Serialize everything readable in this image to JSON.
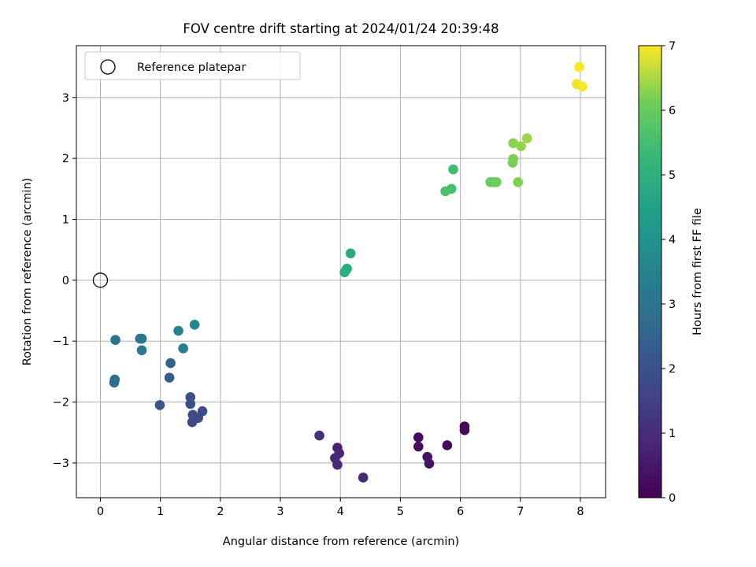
{
  "chart_data": {
    "type": "scatter",
    "title": "FOV centre drift starting at 2024/01/24 20:39:48",
    "xlabel": "Angular distance from reference (arcmin)",
    "ylabel": "Rotation from reference (arcmin)",
    "xlim": [
      -0.4,
      8.42
    ],
    "ylim": [
      -3.57,
      3.85
    ],
    "xticks": [
      0,
      1,
      2,
      3,
      4,
      5,
      6,
      7,
      8
    ],
    "yticks": [
      -3,
      -2,
      -1,
      0,
      1,
      2,
      3
    ],
    "grid": true,
    "colorbar": {
      "label": "Hours from first FF file",
      "range": [
        0,
        7
      ],
      "ticks": [
        0,
        1,
        2,
        3,
        4,
        5,
        6,
        7
      ],
      "colormap": "viridis"
    },
    "legend": {
      "position": "top-left",
      "entries": [
        {
          "label": "Reference platepar",
          "marker": "open-circle"
        }
      ]
    },
    "reference_point": {
      "x": 0,
      "y": 0
    },
    "points": [
      {
        "x": 6.07,
        "y": -2.4,
        "hours": 0.1
      },
      {
        "x": 6.07,
        "y": -2.46,
        "hours": 0.15
      },
      {
        "x": 5.78,
        "y": -2.71,
        "hours": 0.2
      },
      {
        "x": 5.3,
        "y": -2.58,
        "hours": 0.25
      },
      {
        "x": 5.3,
        "y": -2.73,
        "hours": 0.3
      },
      {
        "x": 5.45,
        "y": -2.9,
        "hours": 0.35
      },
      {
        "x": 5.48,
        "y": -3.01,
        "hours": 0.4
      },
      {
        "x": 3.95,
        "y": -2.75,
        "hours": 0.75
      },
      {
        "x": 3.98,
        "y": -2.84,
        "hours": 0.8
      },
      {
        "x": 3.91,
        "y": -2.92,
        "hours": 0.85
      },
      {
        "x": 3.95,
        "y": -3.03,
        "hours": 0.9
      },
      {
        "x": 4.38,
        "y": -3.24,
        "hours": 0.95
      },
      {
        "x": 3.65,
        "y": -2.55,
        "hours": 1.0
      },
      {
        "x": 1.53,
        "y": -2.33,
        "hours": 1.7
      },
      {
        "x": 1.63,
        "y": -2.26,
        "hours": 1.75
      },
      {
        "x": 1.54,
        "y": -2.21,
        "hours": 1.8
      },
      {
        "x": 1.7,
        "y": -2.15,
        "hours": 1.85
      },
      {
        "x": 1.5,
        "y": -2.03,
        "hours": 1.9
      },
      {
        "x": 1.5,
        "y": -1.92,
        "hours": 1.95
      },
      {
        "x": 0.99,
        "y": -2.05,
        "hours": 2.1
      },
      {
        "x": 1.15,
        "y": -1.6,
        "hours": 2.3
      },
      {
        "x": 1.17,
        "y": -1.36,
        "hours": 2.5
      },
      {
        "x": 0.23,
        "y": -1.68,
        "hours": 2.8
      },
      {
        "x": 0.24,
        "y": -1.63,
        "hours": 2.85
      },
      {
        "x": 0.25,
        "y": -0.98,
        "hours": 2.95
      },
      {
        "x": 0.66,
        "y": -0.96,
        "hours": 3.1
      },
      {
        "x": 0.69,
        "y": -0.96,
        "hours": 3.15
      },
      {
        "x": 0.69,
        "y": -1.15,
        "hours": 3.2
      },
      {
        "x": 1.38,
        "y": -1.12,
        "hours": 3.35
      },
      {
        "x": 1.3,
        "y": -0.83,
        "hours": 3.55
      },
      {
        "x": 1.57,
        "y": -0.73,
        "hours": 3.65
      },
      {
        "x": 4.17,
        "y": 0.44,
        "hours": 4.8
      },
      {
        "x": 4.11,
        "y": 0.19,
        "hours": 4.85
      },
      {
        "x": 4.09,
        "y": 0.16,
        "hours": 4.9
      },
      {
        "x": 4.07,
        "y": 0.13,
        "hours": 4.95
      },
      {
        "x": 5.88,
        "y": 1.82,
        "hours": 5.45
      },
      {
        "x": 5.85,
        "y": 1.5,
        "hours": 5.55
      },
      {
        "x": 5.75,
        "y": 1.46,
        "hours": 5.6
      },
      {
        "x": 6.5,
        "y": 1.61,
        "hours": 6.0
      },
      {
        "x": 6.55,
        "y": 1.61,
        "hours": 6.05
      },
      {
        "x": 6.6,
        "y": 1.61,
        "hours": 6.1
      },
      {
        "x": 6.87,
        "y": 1.93,
        "hours": 6.15
      },
      {
        "x": 6.88,
        "y": 1.99,
        "hours": 6.2
      },
      {
        "x": 6.96,
        "y": 1.61,
        "hours": 6.25
      },
      {
        "x": 6.88,
        "y": 2.25,
        "hours": 6.3
      },
      {
        "x": 7.01,
        "y": 2.2,
        "hours": 6.35
      },
      {
        "x": 7.11,
        "y": 2.33,
        "hours": 6.4
      },
      {
        "x": 7.94,
        "y": 3.22,
        "hours": 6.9
      },
      {
        "x": 8.03,
        "y": 3.18,
        "hours": 6.95
      },
      {
        "x": 7.98,
        "y": 3.5,
        "hours": 7.0
      }
    ]
  }
}
